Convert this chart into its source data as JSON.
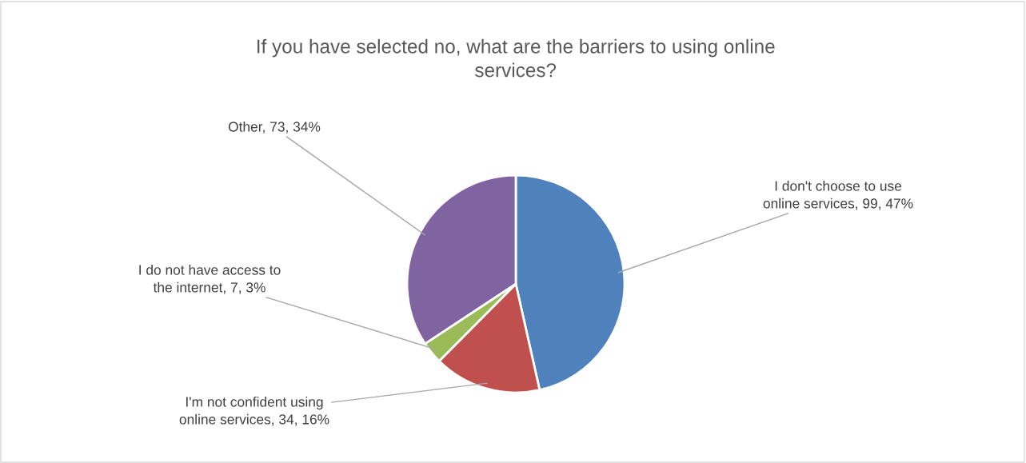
{
  "chart_data": {
    "type": "pie",
    "title": "If you have selected no, what are the barriers to using online services?",
    "categories": [
      "I don't choose to use\nonline services",
      "I'm not confident using\nonline services",
      "I do not have access to\nthe internet",
      "Other"
    ],
    "values": [
      99,
      34,
      7,
      73
    ],
    "colors": [
      "#4f81bd",
      "#c0504d",
      "#9bbb59",
      "#8064a2"
    ],
    "value_labels": [
      "99, 47%",
      "34, 16%",
      "7, 3%",
      "73, 34%"
    ],
    "legend": false
  }
}
